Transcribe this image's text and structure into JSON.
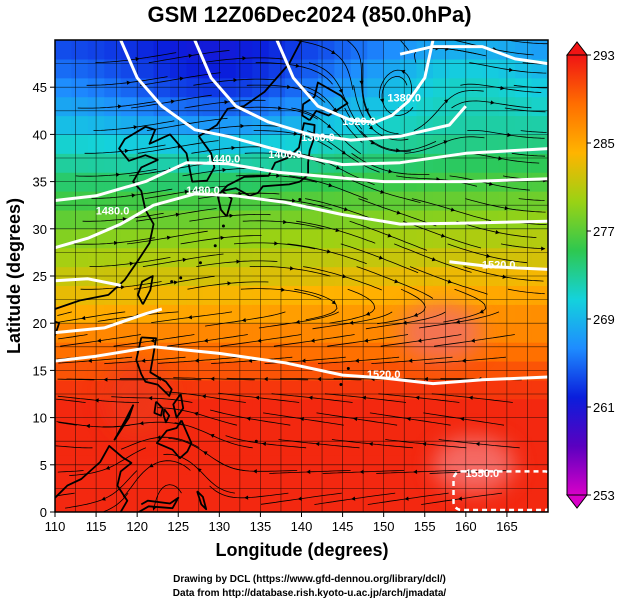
{
  "title": "GSM 12Z06Dec2024 (850.0hPa)",
  "credits": {
    "line1": "Drawing by DCL (https://www.gfd-dennou.org/library/dcl/)",
    "line2": "Data from http://database.rish.kyoto-u.ac.jp/arch/jmadata/"
  },
  "colors": {
    "frame": "#000000",
    "contour": "#ffffff",
    "streamline": "#000000",
    "coast": "#000000"
  },
  "chart_data": {
    "type": "heatmap",
    "title": "GSM 12Z06Dec2024 (850.0hPa)",
    "xlabel": "Longitude (degrees)",
    "ylabel": "Latitude  (degrees)",
    "xlim": [
      110,
      170
    ],
    "ylim": [
      0,
      50
    ],
    "xticks": [
      "110",
      "115",
      "120",
      "125",
      "130",
      "135",
      "140",
      "145",
      "150",
      "155",
      "160",
      "165"
    ],
    "yticks": [
      "0",
      "5",
      "10",
      "15",
      "20",
      "25",
      "30",
      "35",
      "40",
      "45"
    ],
    "grid": true,
    "colorbar": {
      "min": 253,
      "max": 293,
      "labels": [
        "293",
        "285",
        "277",
        "269",
        "261",
        "253"
      ],
      "stops": [
        "#d800c8",
        "#5a00c0",
        "#0a1edc",
        "#1e8cff",
        "#14d2dc",
        "#2ec850",
        "#9ad214",
        "#ffb400",
        "#ff6e00",
        "#f01414"
      ]
    },
    "contour_labels": [
      {
        "text": "1380.0",
        "lon": 152.5,
        "lat": 43.5
      },
      {
        "text": "1320.0",
        "lon": 147,
        "lat": 41
      },
      {
        "text": "1360.0",
        "lon": 142,
        "lat": 39.3
      },
      {
        "text": "1400.0",
        "lon": 138,
        "lat": 37.5
      },
      {
        "text": "1440.0",
        "lon": 130.5,
        "lat": 37
      },
      {
        "text": "1480.0",
        "lon": 128,
        "lat": 33.7
      },
      {
        "text": "1480.0",
        "lon": 117,
        "lat": 31.5
      },
      {
        "text": "1520.0",
        "lon": 164,
        "lat": 25.8
      },
      {
        "text": "1520.0",
        "lon": 150,
        "lat": 14.2
      },
      {
        "text": "1550.0",
        "lon": 162,
        "lat": 3.7
      }
    ]
  }
}
